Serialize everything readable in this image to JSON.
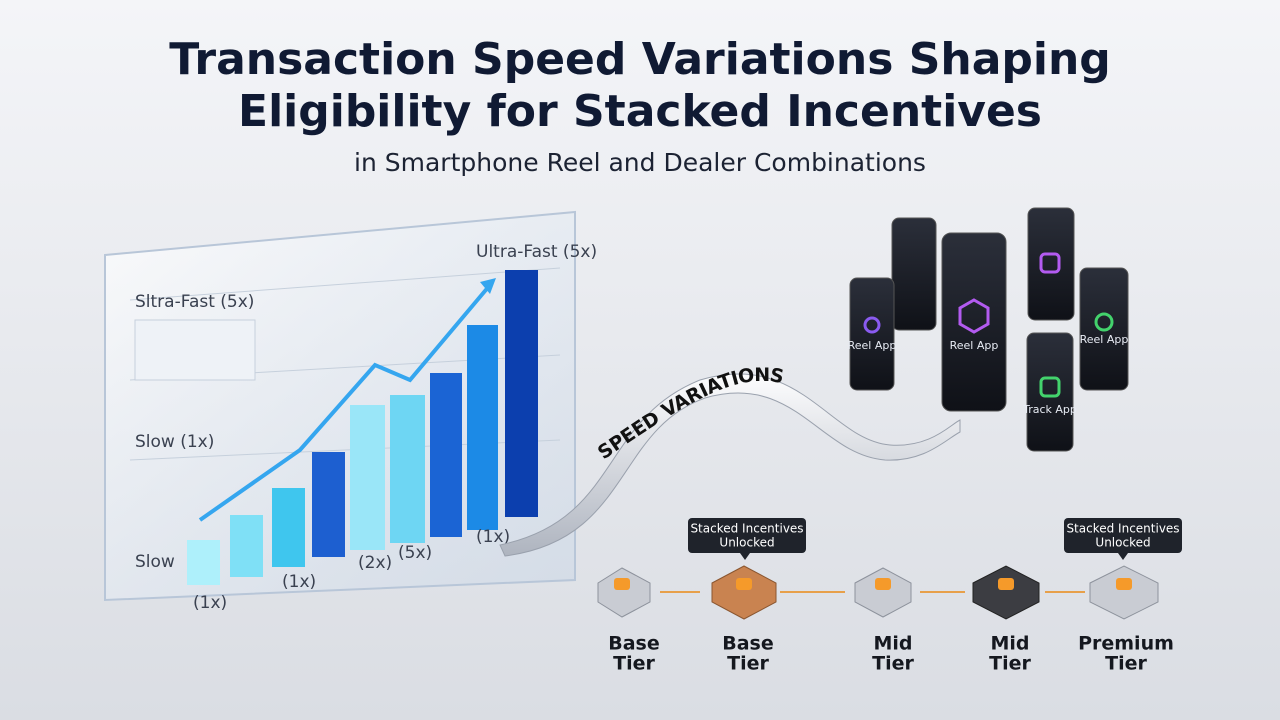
{
  "header": {
    "title_lines": [
      "Transaction Speed Variations Shaping",
      "Eligibility for Stacked Incentives"
    ],
    "subtitle": "in Smartphone Reel and Dealer Combinations"
  },
  "chart_panel": {
    "top_label": "Ultra-Fast (5x)",
    "panel_labels": [
      "Sltra-Fast (5x)",
      "Slow (1x)",
      "Slow"
    ],
    "bar_labels": [
      "(1x)",
      "(1x)",
      "(2x)",
      "(5x)",
      "(1x)"
    ]
  },
  "ribbon": {
    "label": "SPEED VARIATIONS"
  },
  "phones": [
    "Reel App",
    "Reel App",
    "Reel App",
    "Track App"
  ],
  "tiers": [
    {
      "lines": [
        "Base",
        "Tier"
      ]
    },
    {
      "lines": [
        "Base",
        "Tier"
      ]
    },
    {
      "lines": [
        "Mid",
        "Tier"
      ]
    },
    {
      "lines": [
        "Mid",
        "Tier"
      ]
    },
    {
      "lines": [
        "Premium",
        "Tier"
      ]
    }
  ],
  "callouts": [
    {
      "lines": [
        "Stacked Incentives",
        "Unlocked"
      ]
    },
    {
      "lines": [
        "Stacked Incentives",
        "Unlocked"
      ]
    }
  ]
}
